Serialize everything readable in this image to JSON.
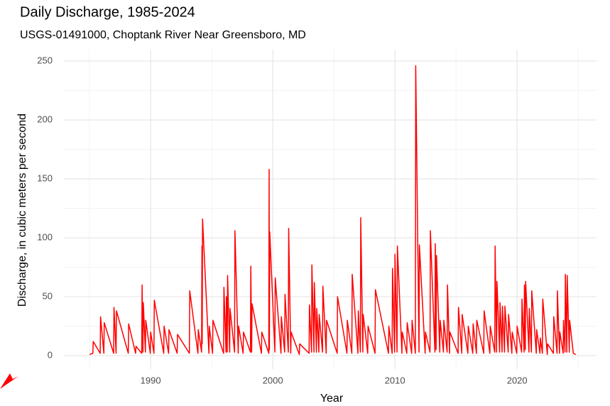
{
  "chart_data": {
    "type": "line",
    "title": "Daily Discharge, 1985-2024",
    "subtitle": "USGS-01491000, Choptank River Near Greensboro, MD",
    "x_label": "Year",
    "y_label": "Discharge, in cubic meters per second",
    "xlim": [
      1982.9,
      2026.5
    ],
    "ylim": [
      -11.4,
      259.6
    ],
    "xticks": [
      1990,
      2000,
      2010,
      2020
    ],
    "yticks": [
      0,
      50,
      100,
      150,
      200,
      250
    ],
    "x_minor_ticks": [
      1985,
      1995,
      2005,
      2015,
      2025
    ],
    "y_minor_ticks": [
      25,
      75,
      125,
      175,
      225
    ],
    "grid": true,
    "series": [
      {
        "name": "Discharge",
        "color": "#ff0000",
        "x": [
          1985.0,
          1985.27,
          1985.3,
          1985.87,
          1985.9,
          1986.17,
          1986.2,
          1986.97,
          1987.0,
          1987.17,
          1987.2,
          1988.17,
          1988.2,
          1988.77,
          1988.8,
          1989.27,
          1989.3,
          1989.37,
          1989.4,
          1989.57,
          1989.6,
          1989.97,
          1990.0,
          1990.27,
          1990.3,
          1991.07,
          1991.1,
          1991.47,
          1991.5,
          1992.17,
          1992.2,
          1993.17,
          1993.2,
          1993.87,
          1993.9,
          1994.17,
          1994.2,
          1994.22,
          1994.25,
          1994.77,
          1994.8,
          1995.07,
          1995.1,
          1995.97,
          1996.0,
          1996.17,
          1996.2,
          1996.27,
          1996.3,
          1996.47,
          1996.5,
          1996.87,
          1996.9,
          1997.17,
          1997.2,
          1997.57,
          1997.6,
          1998.17,
          1998.2,
          1998.27,
          1998.3,
          1999.07,
          1999.1,
          1999.67,
          1999.7,
          1999.72,
          1999.75,
          2000.17,
          2000.2,
          2000.67,
          2000.7,
          2000.97,
          2001.0,
          2001.27,
          2001.3,
          2001.47,
          2001.5,
          2002.17,
          2002.2,
          2002.97,
          2003.0,
          2003.17,
          2003.2,
          2003.37,
          2003.4,
          2003.57,
          2003.6,
          2003.77,
          2003.8,
          2004.07,
          2004.1,
          2004.37,
          2004.4,
          2005.27,
          2005.3,
          2006.07,
          2006.1,
          2006.47,
          2006.5,
          2006.97,
          2007.0,
          2007.17,
          2007.2,
          2007.37,
          2007.4,
          2007.77,
          2007.8,
          2008.37,
          2008.4,
          2009.47,
          2009.5,
          2009.77,
          2009.8,
          2009.97,
          2010.0,
          2010.17,
          2010.2,
          2010.57,
          2010.6,
          2010.97,
          2011.0,
          2011.37,
          2011.4,
          2011.67,
          2011.7,
          2011.97,
          2012.0,
          2012.47,
          2012.5,
          2012.87,
          2012.9,
          2013.27,
          2013.3,
          2013.37,
          2013.4,
          2013.67,
          2013.7,
          2013.97,
          2014.0,
          2014.27,
          2014.3,
          2014.47,
          2014.5,
          2015.17,
          2015.2,
          2015.47,
          2015.5,
          2015.97,
          2016.0,
          2016.37,
          2016.4,
          2016.67,
          2016.7,
          2017.27,
          2017.3,
          2017.77,
          2017.8,
          2018.17,
          2018.2,
          2018.32,
          2018.35,
          2018.57,
          2018.6,
          2018.77,
          2018.8,
          2018.97,
          2019.0,
          2019.27,
          2019.3,
          2019.57,
          2019.6,
          2019.97,
          2020.0,
          2020.37,
          2020.4,
          2020.57,
          2020.6,
          2020.67,
          2020.7,
          2020.97,
          2021.0,
          2021.17,
          2021.2,
          2021.57,
          2021.6,
          2021.87,
          2021.9,
          2022.07,
          2022.1,
          2022.47,
          2022.5,
          2022.97,
          2023.0,
          2023.27,
          2023.3,
          2023.47,
          2023.5,
          2023.77,
          2023.8,
          2023.92,
          2023.95,
          2024.07,
          2024.1,
          2024.27,
          2024.3,
          2024.6,
          2024.8
        ],
        "values": [
          1,
          2,
          12,
          2,
          33,
          2,
          28,
          2,
          41,
          2,
          38,
          2,
          27,
          2,
          8,
          2,
          60,
          3,
          45,
          3,
          30,
          2,
          20,
          2,
          47,
          2,
          25,
          2,
          22,
          2,
          18,
          2,
          55,
          2,
          22,
          3,
          93,
          10,
          116,
          2,
          25,
          2,
          30,
          2,
          58,
          3,
          50,
          3,
          68,
          3,
          40,
          3,
          106,
          2,
          25,
          2,
          20,
          3,
          76,
          3,
          44,
          2,
          20,
          2,
          158,
          5,
          105,
          3,
          66,
          2,
          33,
          3,
          52,
          3,
          108,
          2,
          20,
          1,
          10,
          2,
          43,
          3,
          77,
          3,
          62,
          3,
          40,
          3,
          35,
          3,
          59,
          2,
          30,
          2,
          50,
          2,
          30,
          2,
          69,
          2,
          38,
          3,
          117,
          3,
          35,
          2,
          25,
          2,
          56,
          2,
          25,
          2,
          74,
          3,
          86,
          3,
          93,
          2,
          20,
          2,
          28,
          2,
          30,
          2,
          246,
          3,
          94,
          2,
          20,
          3,
          106,
          3,
          95,
          5,
          85,
          3,
          30,
          3,
          30,
          3,
          60,
          2,
          20,
          2,
          41,
          2,
          35,
          2,
          25,
          2,
          27,
          2,
          30,
          2,
          38,
          2,
          25,
          3,
          93,
          3,
          63,
          3,
          45,
          3,
          42,
          3,
          42,
          3,
          35,
          2,
          20,
          2,
          25,
          3,
          48,
          3,
          60,
          5,
          63,
          3,
          40,
          3,
          55,
          2,
          22,
          2,
          15,
          2,
          48,
          1,
          10,
          2,
          33,
          2,
          55,
          2,
          20,
          2,
          30,
          3,
          69,
          3,
          68,
          3,
          30,
          2,
          1
        ]
      }
    ]
  }
}
